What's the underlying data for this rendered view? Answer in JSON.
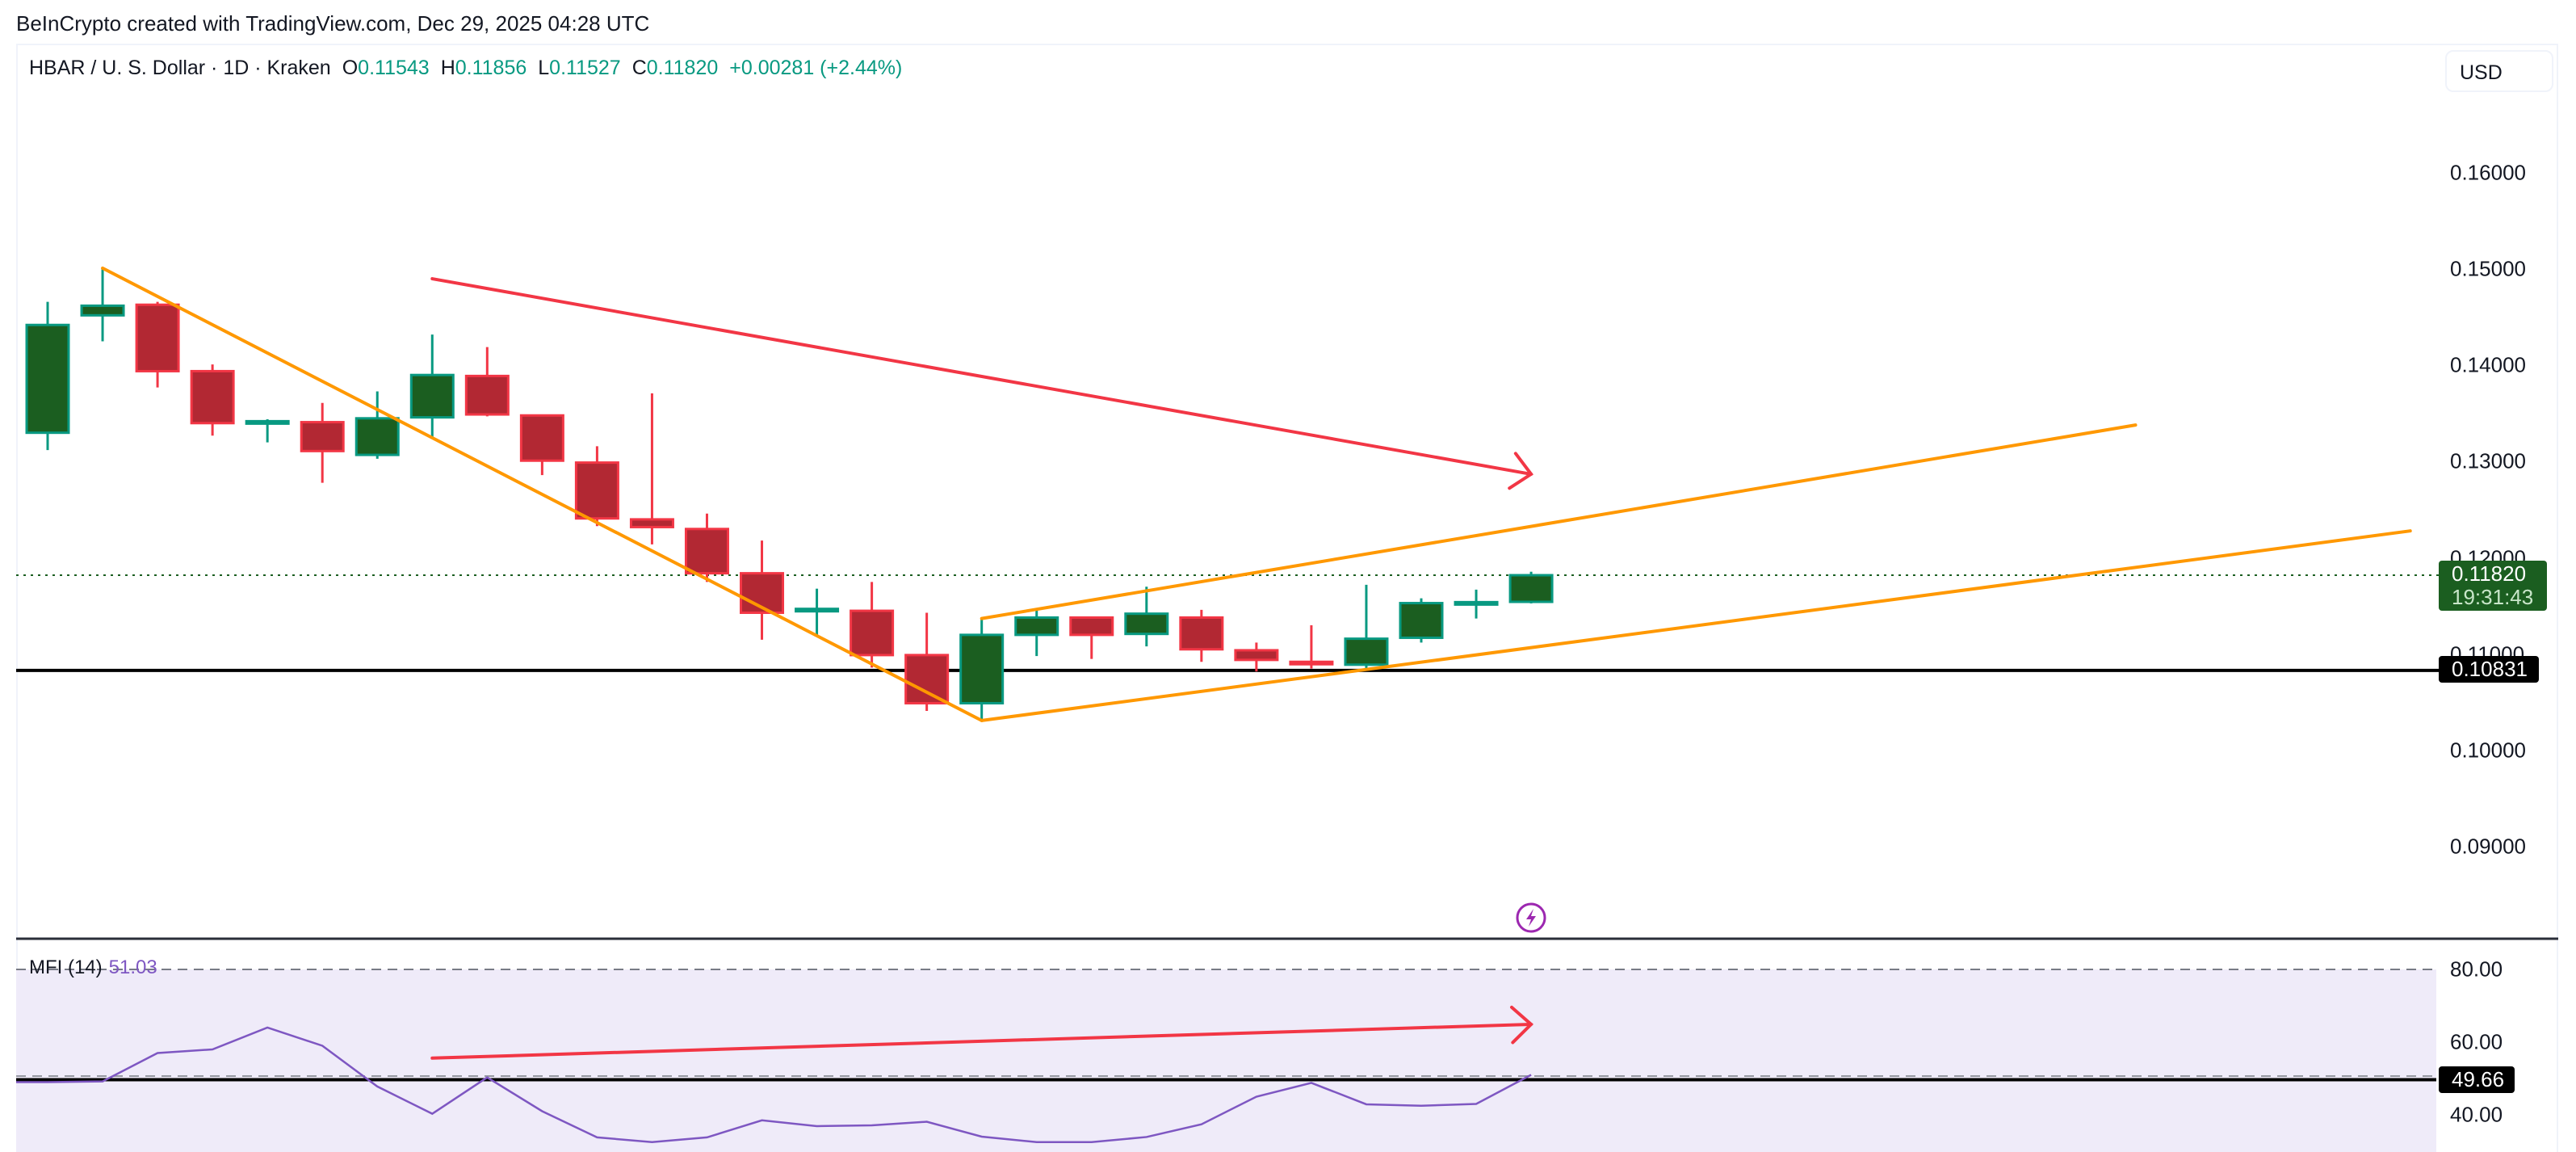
{
  "attribution": "BeInCrypto created with TradingView.com, Dec 29, 2025 04:28 UTC",
  "legend": {
    "symbol": "HBAR / U. S. Dollar · 1D · Kraken",
    "open_label": "O",
    "open": "0.11543",
    "high_label": "H",
    "high": "0.11856",
    "low_label": "L",
    "low": "0.11527",
    "close_label": "C",
    "close": "0.11820",
    "change": "+0.00281 (+2.44%)"
  },
  "currency": "USD",
  "price_axis": {
    "ticks": [
      "0.16000",
      "0.15000",
      "0.14000",
      "0.13000",
      "0.12000",
      "0.11000",
      "0.10000",
      "0.09000"
    ],
    "last_price": "0.11820",
    "countdown": "19:31:43",
    "support_label": "0.10831"
  },
  "mfi": {
    "title": "MFI (14)",
    "value": "51.03",
    "ticks": [
      "80.00",
      "60.00",
      "40.00"
    ],
    "level_label": "49.66"
  },
  "colors": {
    "up_body": "#1b5e20",
    "up_border": "#089981",
    "down_body": "#b22833",
    "down_border": "#f23645",
    "trendline": "#ff9800",
    "arrow": "#f23645",
    "mfi_line": "#7e57c2",
    "mfi_band": "#efebf9",
    "alert": "#9c27b0"
  },
  "chart_data": {
    "type": "candlestick",
    "title": "HBAR / U. S. Dollar · 1D · Kraken",
    "ylabel": "USD",
    "ylim": [
      0.085,
      0.165
    ],
    "candles": [
      {
        "o": 0.133,
        "h": 0.1466,
        "l": 0.1312,
        "c": 0.1442
      },
      {
        "o": 0.1452,
        "h": 0.1501,
        "l": 0.1425,
        "c": 0.1462
      },
      {
        "o": 0.1463,
        "h": 0.1466,
        "l": 0.1377,
        "c": 0.1394
      },
      {
        "o": 0.1394,
        "h": 0.1401,
        "l": 0.1327,
        "c": 0.134
      },
      {
        "o": 0.1341,
        "h": 0.1344,
        "l": 0.132,
        "c": 0.1342
      },
      {
        "o": 0.1341,
        "h": 0.1361,
        "l": 0.1278,
        "c": 0.1311
      },
      {
        "o": 0.1307,
        "h": 0.1373,
        "l": 0.1303,
        "c": 0.1345
      },
      {
        "o": 0.1346,
        "h": 0.1432,
        "l": 0.1325,
        "c": 0.139
      },
      {
        "o": 0.1389,
        "h": 0.1419,
        "l": 0.1347,
        "c": 0.1349
      },
      {
        "o": 0.1348,
        "h": 0.1316,
        "l": 0.1286,
        "c": 0.1301
      },
      {
        "o": 0.1299,
        "h": 0.1316,
        "l": 0.1233,
        "c": 0.1241
      },
      {
        "o": 0.124,
        "h": 0.1371,
        "l": 0.1214,
        "c": 0.1232
      },
      {
        "o": 0.123,
        "h": 0.1246,
        "l": 0.1175,
        "c": 0.1184
      },
      {
        "o": 0.1184,
        "h": 0.1218,
        "l": 0.1115,
        "c": 0.1143
      },
      {
        "o": 0.1145,
        "h": 0.1168,
        "l": 0.112,
        "c": 0.1147
      },
      {
        "o": 0.1145,
        "h": 0.1175,
        "l": 0.1086,
        "c": 0.1099
      },
      {
        "o": 0.1099,
        "h": 0.1143,
        "l": 0.1041,
        "c": 0.1049
      },
      {
        "o": 0.1049,
        "h": 0.1137,
        "l": 0.1031,
        "c": 0.112
      },
      {
        "o": 0.112,
        "h": 0.1148,
        "l": 0.1098,
        "c": 0.1138
      },
      {
        "o": 0.1138,
        "h": 0.1139,
        "l": 0.1095,
        "c": 0.112
      },
      {
        "o": 0.1121,
        "h": 0.117,
        "l": 0.1108,
        "c": 0.1142
      },
      {
        "o": 0.1138,
        "h": 0.1146,
        "l": 0.1092,
        "c": 0.1105
      },
      {
        "o": 0.1104,
        "h": 0.1112,
        "l": 0.1082,
        "c": 0.1094
      },
      {
        "o": 0.1092,
        "h": 0.113,
        "l": 0.1085,
        "c": 0.1091
      },
      {
        "o": 0.1089,
        "h": 0.1172,
        "l": 0.1085,
        "c": 0.1116
      },
      {
        "o": 0.1117,
        "h": 0.1158,
        "l": 0.1112,
        "c": 0.1153
      },
      {
        "o": 0.1152,
        "h": 0.1167,
        "l": 0.1137,
        "c": 0.1154
      },
      {
        "o": 0.11543,
        "h": 0.11856,
        "l": 0.11527,
        "c": 0.1182
      }
    ],
    "horizontal_lines": [
      {
        "price": 0.10831,
        "color": "#000000",
        "label": "0.10831"
      }
    ],
    "last_price_line": 0.1182,
    "trendlines": [
      {
        "name": "descending",
        "color": "#ff9800",
        "from": [
          1,
          0.1501
        ],
        "to": [
          17,
          0.1031
        ]
      },
      {
        "name": "channel-upper",
        "color": "#ff9800",
        "from": [
          17,
          0.1137
        ],
        "to": [
          38,
          0.1338
        ]
      },
      {
        "name": "channel-lower",
        "color": "#ff9800",
        "from": [
          17,
          0.1031
        ],
        "to": [
          43,
          0.1228
        ]
      },
      {
        "name": "price-lower-highs-arrow",
        "color": "#f23645",
        "from": [
          7,
          0.149
        ],
        "to": [
          27,
          0.1287
        ]
      }
    ],
    "mfi": {
      "period": 14,
      "ylim": [
        30,
        85
      ],
      "levels": [
        80,
        49.66
      ],
      "values": [
        49.0,
        49.2,
        57,
        58,
        64,
        59,
        47.8,
        40.3,
        50.3,
        41,
        33.8,
        32.5,
        33.8,
        38.5,
        36.9,
        37.1,
        38.1,
        34.0,
        32.5,
        32.5,
        33.9,
        37.4,
        45,
        48.8,
        42.9,
        42.5,
        43,
        51.0
      ],
      "divergence_arrow": {
        "color": "#f23645",
        "from": [
          7,
          55.6
        ],
        "to": [
          27,
          64.9
        ]
      }
    }
  }
}
